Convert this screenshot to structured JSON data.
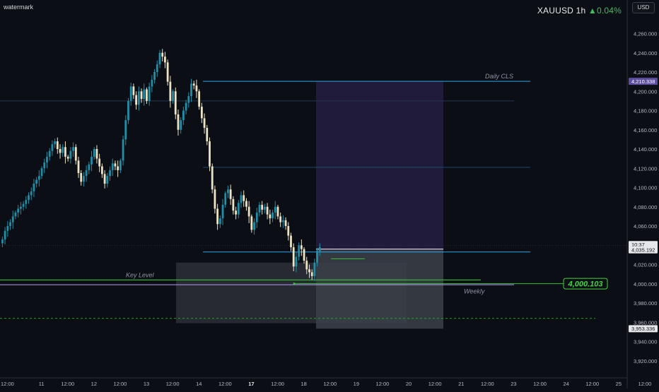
{
  "watermark": "watermark",
  "header": {
    "symbol": "XAUUSD",
    "interval": "1h",
    "change_arrow": "▲",
    "change": "0.04%"
  },
  "currency_label": "USD",
  "colors": {
    "background": "#0c0e15",
    "candle_up": "#1f8fa8",
    "candle_down": "#ece3c4",
    "zone_line": "#2aa7e8",
    "key_level": "#35c235",
    "weekly": "#b69cf2",
    "purple_zone": "#221c3c",
    "grey_zone": "#30343d",
    "badge_green": "#41d63f"
  },
  "chart_data": {
    "type": "candlestick",
    "symbol": "XAUUSD",
    "timeframe": "1h",
    "ylim": [
      3905,
      4290
    ],
    "y_ticks": [
      "4,260.000",
      "4,240.000",
      "4,220.000",
      "4,200.000",
      "4,180.000",
      "4,160.000",
      "4,140.000",
      "4,120.000",
      "4,100.000",
      "4,080.000",
      "4,060.000",
      "4,040.000",
      "4,020.000",
      "4,000.000",
      "3,980.000",
      "3,960.000",
      "3,940.000",
      "3,920.000"
    ],
    "y_tick_values": [
      4260,
      4240,
      4220,
      4200,
      4180,
      4160,
      4140,
      4120,
      4100,
      4080,
      4060,
      4040,
      4020,
      4000,
      3980,
      3960,
      3940,
      3920
    ],
    "x_ticks": [
      {
        "label": "12:00",
        "bar": 2
      },
      {
        "label": "11",
        "bar": 15
      },
      {
        "label": "12:00",
        "bar": 25
      },
      {
        "label": "12",
        "bar": 35
      },
      {
        "label": "12:00",
        "bar": 45
      },
      {
        "label": "13",
        "bar": 55
      },
      {
        "label": "12:00",
        "bar": 65
      },
      {
        "label": "14",
        "bar": 75
      },
      {
        "label": "12:00",
        "bar": 85
      },
      {
        "label": "17",
        "bar": 95,
        "bold": true
      },
      {
        "label": "12:00",
        "bar": 105
      },
      {
        "label": "18",
        "bar": 115
      },
      {
        "label": "12:00",
        "bar": 125
      },
      {
        "label": "19",
        "bar": 135
      },
      {
        "label": "12:00",
        "bar": 145
      },
      {
        "label": "20",
        "bar": 155
      },
      {
        "label": "12:00",
        "bar": 165
      },
      {
        "label": "21",
        "bar": 175
      },
      {
        "label": "12:00",
        "bar": 185
      },
      {
        "label": "23",
        "bar": 195
      },
      {
        "label": "12:00",
        "bar": 205
      },
      {
        "label": "24",
        "bar": 215
      },
      {
        "label": "12:00",
        "bar": 225
      },
      {
        "label": "25",
        "bar": 235
      },
      {
        "label": "12:00",
        "bar": 245
      }
    ],
    "closes": [
      4046,
      4055,
      4060,
      4064,
      4070,
      4074,
      4078,
      4080,
      4083,
      4087,
      4092,
      4096,
      4104,
      4108,
      4112,
      4120,
      4126,
      4132,
      4138,
      4145,
      4148,
      4140,
      4136,
      4142,
      4132,
      4130,
      4138,
      4142,
      4128,
      4115,
      4106,
      4112,
      4118,
      4124,
      4132,
      4140,
      4130,
      4122,
      4114,
      4104,
      4112,
      4118,
      4125,
      4122,
      4118,
      4128,
      4150,
      4170,
      4190,
      4205,
      4196,
      4186,
      4200,
      4192,
      4202,
      4190,
      4205,
      4212,
      4220,
      4228,
      4240,
      4236,
      4230,
      4210,
      4190,
      4200,
      4176,
      4160,
      4170,
      4180,
      4188,
      4195,
      4208,
      4206,
      4200,
      4184,
      4172,
      4162,
      4148,
      4122,
      4098,
      4078,
      4062,
      4068,
      4082,
      4094,
      4098,
      4088,
      4076,
      4072,
      4084,
      4092,
      4086,
      4080,
      4070,
      4056,
      4064,
      4074,
      4082,
      4077,
      4080,
      4072,
      4068,
      4074,
      4080,
      4070,
      4064,
      4066,
      4060,
      4050,
      4038,
      4018,
      4028,
      4040,
      4036,
      4024,
      4015,
      4012,
      4008,
      4022,
      4034,
      4038
    ],
    "levels": [
      {
        "name": "Daily CLS",
        "value": 4210.338,
        "badge": "4,210.338"
      },
      {
        "name": "zone-bottom",
        "value": 4033
      },
      {
        "name": "Key Level",
        "value": 4004
      },
      {
        "name": "Weekly",
        "value": 4000.103,
        "badge": "4,000.103"
      },
      {
        "name": "dashed-target",
        "value": 3964
      },
      {
        "name": "grid-1",
        "value": 4190
      },
      {
        "name": "grid-2",
        "value": 4121
      },
      {
        "name": "position-entry",
        "value": 4036
      }
    ],
    "price_badges": [
      {
        "text": "4,210.338",
        "value": 4210.338
      },
      {
        "text": "10:37",
        "value": 4038.5
      },
      {
        "text": "4,035.192",
        "value": 4035.192
      },
      {
        "text": "3,953.336",
        "value": 3953.336
      }
    ],
    "annotations": [
      {
        "text": "Daily CLS",
        "value": 4210.338
      },
      {
        "text": "Key Level",
        "value": 4004
      },
      {
        "text": "Weekly",
        "value": 3992
      }
    ]
  }
}
